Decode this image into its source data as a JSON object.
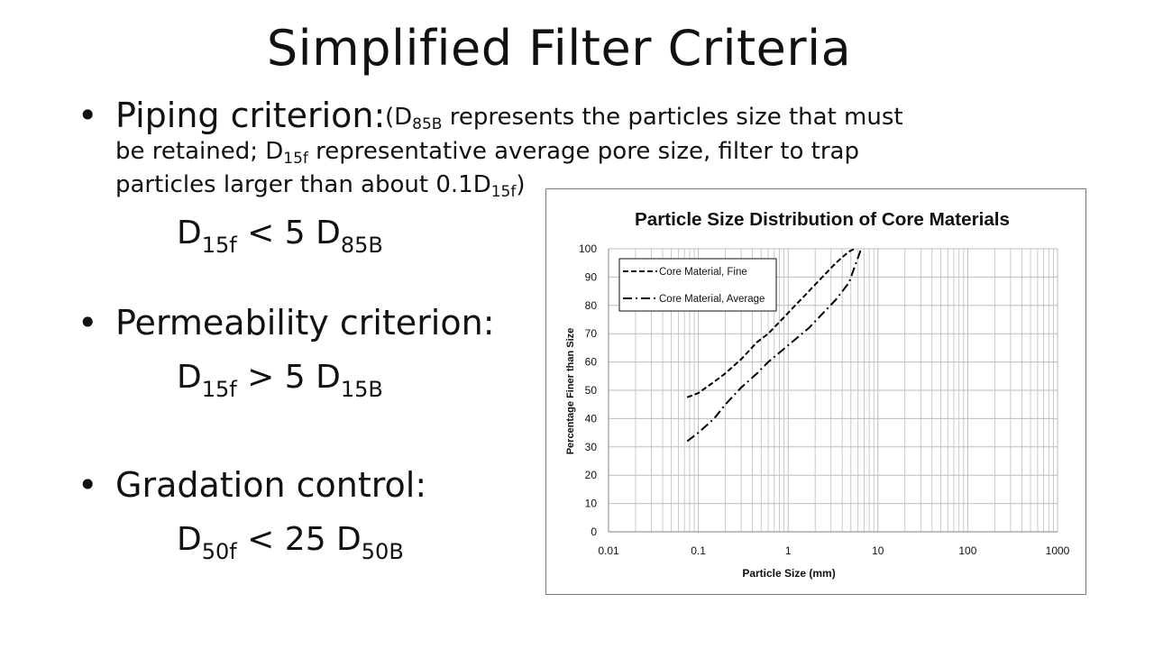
{
  "slide": {
    "title": "Simplified Filter Criteria",
    "bullets": [
      {
        "label": "Piping criterion:",
        "note_lines": [
          {
            "parts": [
              [
                "t",
                "(D"
              ],
              [
                "s",
                "85B"
              ],
              [
                "t",
                " represents the particles size that must"
              ]
            ]
          },
          {
            "parts": [
              [
                "t",
                "be retained; D"
              ],
              [
                "s",
                "15f"
              ],
              [
                "t",
                " representative average pore size, filter to trap"
              ]
            ]
          },
          {
            "parts": [
              [
                "t",
                "particles larger than about 0.1D"
              ],
              [
                "s",
                "15f"
              ],
              [
                "t",
                ")"
              ]
            ]
          }
        ],
        "formula": {
          "lhs": "D",
          "lhs_sub": "15f",
          "op": " < 5 ",
          "rhs": "D",
          "rhs_sub": "85B"
        }
      },
      {
        "label": "Permeability criterion:",
        "formula": {
          "lhs": "D",
          "lhs_sub": "15f",
          "op": " > 5 ",
          "rhs": "D",
          "rhs_sub": "15B"
        }
      },
      {
        "label": "Gradation control:",
        "formula": {
          "lhs": "D",
          "lhs_sub": "50f",
          "op": " < 25 ",
          "rhs": "D",
          "rhs_sub": "50B"
        }
      }
    ],
    "bullet_symbol": "•"
  },
  "chart_data": {
    "type": "line",
    "title": "Particle Size Distribution of Core Materials",
    "xlabel": "Particle Size (mm)",
    "ylabel": "Percentage Finer than Size",
    "x_scale": "log",
    "xlim": [
      0.01,
      1000
    ],
    "ylim": [
      0,
      100
    ],
    "x_ticks": [
      "0.01",
      "0.1",
      "1",
      "10",
      "100",
      "1000"
    ],
    "y_ticks": [
      "0",
      "10",
      "20",
      "30",
      "40",
      "50",
      "60",
      "70",
      "80",
      "90",
      "100"
    ],
    "grid": true,
    "legend_position": "top-left",
    "series": [
      {
        "name": "Core Material, Fine",
        "style": "dashed",
        "x": [
          0.075,
          0.1,
          0.15,
          0.2,
          0.3,
          0.45,
          0.6,
          0.85,
          1.2,
          1.7,
          2.4,
          3.4,
          4.75,
          5.5
        ],
        "y": [
          47.5,
          49,
          53,
          56,
          61,
          67,
          70,
          75,
          80,
          85,
          90,
          95,
          99,
          100
        ]
      },
      {
        "name": "Core Material, Average",
        "style": "dashdot",
        "x": [
          0.075,
          0.1,
          0.15,
          0.2,
          0.3,
          0.45,
          0.6,
          0.85,
          1.2,
          1.7,
          2.4,
          3.4,
          4.75,
          6.5
        ],
        "y": [
          32,
          35,
          40,
          45,
          51,
          56,
          60,
          64,
          68,
          72,
          77,
          82,
          88,
          100
        ]
      }
    ],
    "colors": {
      "line": "#000000",
      "grid": "#bdbdbd",
      "axis": "#9a9a9a"
    }
  }
}
